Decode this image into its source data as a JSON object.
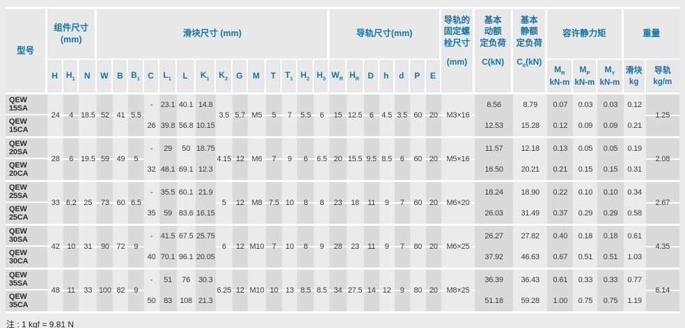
{
  "note": "注 : 1 kgf = 9.81 N",
  "colors": {
    "accent_blue": "#1574a4",
    "stripe_dark": "#dadada",
    "page_bg": "#ebebeb",
    "separator": "#ffffff"
  },
  "table": {
    "header": {
      "groups": [
        {
          "id": "model",
          "label": "型号",
          "type": "model"
        },
        {
          "id": "assembly-dimensions",
          "label": "组件尺寸\n(mm)",
          "cols": [
            {
              "t": "H"
            },
            {
              "t": "H",
              "s": "1"
            },
            {
              "t": "N"
            }
          ]
        },
        {
          "id": "block-dimensions",
          "label": "滑块尺寸 (mm)",
          "cols": [
            {
              "t": "W"
            },
            {
              "t": "B"
            },
            {
              "t": "B",
              "s": "1"
            },
            {
              "t": "C"
            },
            {
              "t": "L",
              "s": "1"
            },
            {
              "t": "L"
            },
            {
              "t": "K",
              "s": "1"
            },
            {
              "t": "K",
              "s": "2"
            },
            {
              "t": "G"
            },
            {
              "t": "M"
            },
            {
              "t": "T"
            },
            {
              "t": "T",
              "s": "1"
            },
            {
              "t": "H",
              "s": "2"
            },
            {
              "t": "H",
              "s": "3"
            }
          ]
        },
        {
          "id": "rail-dimensions",
          "label": "导轨尺寸(mm)",
          "cols": [
            {
              "t": "W",
              "s": "R"
            },
            {
              "t": "H",
              "s": "R"
            },
            {
              "t": "D"
            },
            {
              "t": "h"
            },
            {
              "t": "d"
            },
            {
              "t": "P"
            },
            {
              "t": "E"
            }
          ]
        },
        {
          "id": "rail-bolt-size",
          "label": "导轨的\n固定螺\n栓尺寸",
          "type": "tall",
          "unit": {
            "t": "(mm)"
          }
        },
        {
          "id": "basic-dynamic-load",
          "label": "基本\n动额\n定负荷",
          "type": "tall",
          "unit": {
            "t": "C(kN)"
          }
        },
        {
          "id": "basic-static-load",
          "label": "基本\n静额\n定负荷",
          "type": "tall",
          "unit": {
            "t": "C",
            "s": "0",
            "post": "(kN)"
          }
        },
        {
          "id": "permissible-static-moment",
          "label": "容许静力矩",
          "cols": [
            {
              "t": "M",
              "s": "R",
              "u": "kN-m",
              "id": "mr"
            },
            {
              "t": "M",
              "s": "P",
              "u": "kN-m",
              "id": "mp"
            },
            {
              "t": "M",
              "s": "Y",
              "u": "kN-m",
              "id": "my"
            }
          ]
        },
        {
          "id": "weight",
          "label": "重量",
          "cols": [
            {
              "t": "滑块",
              "u": "kg",
              "id": "block-weight"
            },
            {
              "t": "导轨",
              "u": "kg/m",
              "id": "rail-weight"
            }
          ]
        }
      ]
    },
    "groups": [
      {
        "models": [
          "QEW 15SA",
          "QEW 15CA"
        ],
        "shared": {
          "H": "24",
          "H1": "4",
          "N": "18.5",
          "W": "52",
          "B": "41",
          "B1": "5.5",
          "K2": "3.5",
          "G": "5.7",
          "M": "M5",
          "T": "5",
          "T1": "7",
          "H2": "5.5",
          "H3": "6",
          "WR": "15",
          "HR": "12.5",
          "D": "6",
          "h": "4.5",
          "d": "3.5",
          "P": "60",
          "E": "20",
          "bolt": "M3×16",
          "wt_rail": "1.25"
        },
        "rows": [
          {
            "C": "-",
            "L1": "23.1",
            "L": "40.1",
            "K1": "14.8",
            "C_kN": "8.56",
            "C0_kN": "8.79",
            "MR": "0.07",
            "MP": "0.03",
            "MY": "0.03",
            "wt_block": "0.12"
          },
          {
            "C": "26",
            "L1": "39.8",
            "L": "56.8",
            "K1": "10.15",
            "C_kN": "12.53",
            "C0_kN": "15.28",
            "MR": "0.12",
            "MP": "0.09",
            "MY": "0.09",
            "wt_block": "0.21"
          }
        ]
      },
      {
        "models": [
          "QEW 20SA",
          "QEW 20CA"
        ],
        "shared": {
          "H": "28",
          "H1": "6",
          "N": "19.5",
          "W": "59",
          "B": "49",
          "B1": "5",
          "K2": "4.15",
          "G": "12",
          "M": "M6",
          "T": "7",
          "T1": "9",
          "H2": "6",
          "H3": "6.5",
          "WR": "20",
          "HR": "15.5",
          "D": "9.5",
          "h": "8.5",
          "d": "6",
          "P": "60",
          "E": "20",
          "bolt": "M5×16",
          "wt_rail": "2.08"
        },
        "rows": [
          {
            "C": "-",
            "L1": "29",
            "L": "50",
            "K1": "18.75",
            "C_kN": "11.57",
            "C0_kN": "12.18",
            "MR": "0.13",
            "MP": "0.05",
            "MY": "0.05",
            "wt_block": "0.19"
          },
          {
            "C": "32",
            "L1": "48.1",
            "L": "69.1",
            "K1": "12.3",
            "C_kN": "16.50",
            "C0_kN": "20.21",
            "MR": "0.21",
            "MP": "0.15",
            "MY": "0.15",
            "wt_block": "0.31"
          }
        ]
      },
      {
        "models": [
          "QEW 25SA",
          "QEW 25CA"
        ],
        "shared": {
          "H": "33",
          "H1": "6.2",
          "N": "25",
          "W": "73",
          "B": "60",
          "B1": "6.5",
          "K2": "5",
          "G": "12",
          "M": "M8",
          "T": "7.5",
          "T1": "10",
          "H2": "8",
          "H3": "8",
          "WR": "23",
          "HR": "18",
          "D": "11",
          "h": "9",
          "d": "7",
          "P": "60",
          "E": "20",
          "bolt": "M6×20",
          "wt_rail": "2.67"
        },
        "rows": [
          {
            "C": "-",
            "L1": "35.5",
            "L": "60.1",
            "K1": "21.9",
            "C_kN": "18.24",
            "C0_kN": "18.90",
            "MR": "0.22",
            "MP": "0.10",
            "MY": "0.10",
            "wt_block": "0.34"
          },
          {
            "C": "35",
            "L1": "59",
            "L": "83.6",
            "K1": "16.15",
            "C_kN": "26.03",
            "C0_kN": "31.49",
            "MR": "0.37",
            "MP": "0.29",
            "MY": "0.29",
            "wt_block": "0.58"
          }
        ]
      },
      {
        "models": [
          "QEW 30SA",
          "QEW 30CA"
        ],
        "shared": {
          "H": "42",
          "H1": "10",
          "N": "31",
          "W": "90",
          "B": "72",
          "B1": "9",
          "K2": "6",
          "G": "12",
          "M": "M10",
          "T": "7",
          "T1": "10",
          "H2": "8",
          "H3": "9",
          "WR": "28",
          "HR": "23",
          "D": "11",
          "h": "9",
          "d": "7",
          "P": "80",
          "E": "20",
          "bolt": "M6×25",
          "wt_rail": "4.35"
        },
        "rows": [
          {
            "C": "-",
            "L1": "41.5",
            "L": "67.5",
            "K1": "25.75",
            "C_kN": "26.27",
            "C0_kN": "27.82",
            "MR": "0.40",
            "MP": "0.18",
            "MY": "0.18",
            "wt_block": "0.61"
          },
          {
            "C": "40",
            "L1": "70.1",
            "L": "96.1",
            "K1": "20.05",
            "C_kN": "37.92",
            "C0_kN": "46.63",
            "MR": "0.67",
            "MP": "0.51",
            "MY": "0.51",
            "wt_block": "1.03"
          }
        ]
      },
      {
        "models": [
          "QEW 35SA",
          "QEW 35CA"
        ],
        "shared": {
          "H": "48",
          "H1": "11",
          "N": "33",
          "W": "100",
          "B": "82",
          "B1": "9",
          "K2": "6.25",
          "G": "12",
          "M": "M10",
          "T": "10",
          "T1": "13",
          "H2": "8.5",
          "H3": "8.5",
          "WR": "34",
          "HR": "27.5",
          "D": "14",
          "h": "12",
          "d": "9",
          "P": "80",
          "E": "20",
          "bolt": "M8×25",
          "wt_rail": "6.14"
        },
        "rows": [
          {
            "C": "-",
            "L1": "51",
            "L": "76",
            "K1": "30.3",
            "C_kN": "36.39",
            "C0_kN": "36.43",
            "MR": "0.61",
            "MP": "0.33",
            "MY": "0.33",
            "wt_block": "0.77"
          },
          {
            "C": "50",
            "L1": "83",
            "L": "108",
            "K1": "21.3",
            "C_kN": "51.18",
            "C0_kN": "59.28",
            "MR": "1.00",
            "MP": "0.75",
            "MY": "0.75",
            "wt_block": "1.19"
          }
        ]
      }
    ]
  }
}
